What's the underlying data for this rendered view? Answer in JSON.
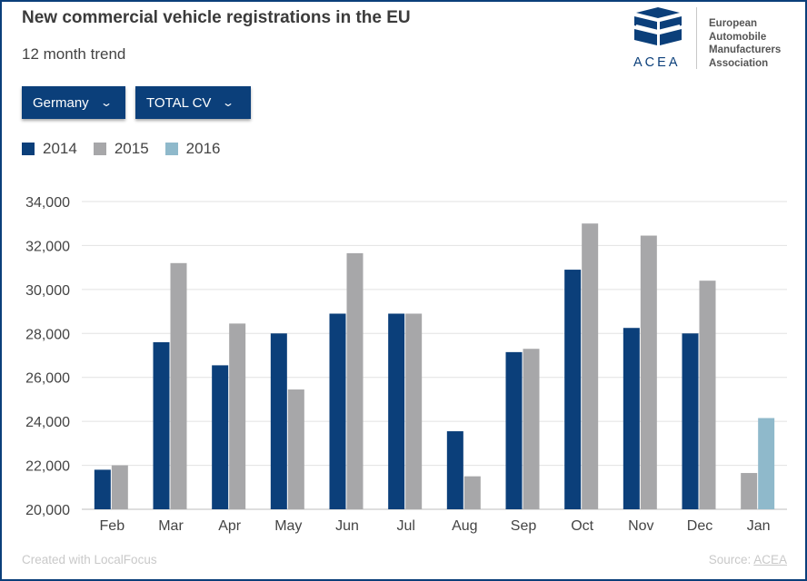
{
  "header": {
    "title": "New commercial vehicle registrations in the EU",
    "subtitle": "12 month trend"
  },
  "filters": {
    "country": "Germany",
    "category": "TOTAL CV"
  },
  "logo": {
    "acronym": "ACEA",
    "line1": "European",
    "line2": "Automobile",
    "line3": "Manufacturers",
    "line4": "Association"
  },
  "footer": {
    "credit": "Created with LocalFocus",
    "source_label": "Source:",
    "source_link": "ACEA"
  },
  "colors": {
    "2014": "#0b3f7a",
    "2015": "#a7a7a9",
    "2016": "#8fb9cb"
  },
  "chart_data": {
    "type": "bar",
    "title": "New commercial vehicle registrations in the EU",
    "subtitle": "12 month trend",
    "categories": [
      "Feb",
      "Mar",
      "Apr",
      "May",
      "Jun",
      "Jul",
      "Aug",
      "Sep",
      "Oct",
      "Nov",
      "Dec",
      "Jan"
    ],
    "series": [
      {
        "name": "2014",
        "values": [
          21800,
          27600,
          26550,
          28000,
          28900,
          28900,
          23550,
          27150,
          30900,
          28250,
          28000,
          null
        ]
      },
      {
        "name": "2015",
        "values": [
          22000,
          31200,
          28450,
          25450,
          31650,
          28900,
          21500,
          27300,
          33000,
          32450,
          30400,
          21650
        ]
      },
      {
        "name": "2016",
        "values": [
          null,
          null,
          null,
          null,
          null,
          null,
          null,
          null,
          null,
          null,
          null,
          24150
        ]
      }
    ],
    "ylim": [
      20000,
      34000
    ],
    "yticks": [
      "20,000",
      "22,000",
      "24,000",
      "26,000",
      "28,000",
      "30,000",
      "32,000",
      "34,000"
    ],
    "ytick_values": [
      20000,
      22000,
      24000,
      26000,
      28000,
      30000,
      32000,
      34000
    ],
    "grid": true,
    "legend_position": "top-left"
  }
}
